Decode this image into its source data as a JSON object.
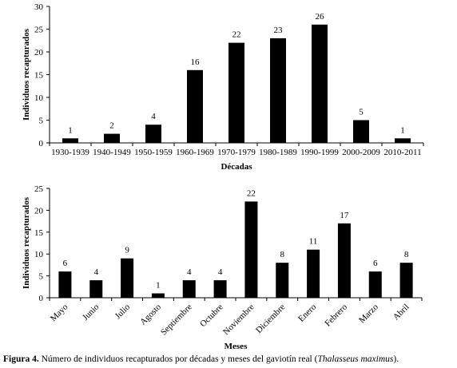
{
  "chart_data": [
    {
      "type": "bar",
      "title": "",
      "xlabel": "Décadas",
      "ylabel": "Individuos recapturados",
      "categories": [
        "1930-1939",
        "1940-1949",
        "1950-1959",
        "1960-1969",
        "1970-1979",
        "1980-1989",
        "1990-1999",
        "2000-2009",
        "2010-2011"
      ],
      "values": [
        1,
        2,
        4,
        16,
        22,
        23,
        26,
        5,
        1
      ],
      "ylim": [
        0,
        30
      ],
      "yticks": [
        0,
        5,
        10,
        15,
        20,
        25,
        30
      ],
      "data_labels": true,
      "grid": false,
      "bar_color": "#000000"
    },
    {
      "type": "bar",
      "title": "",
      "xlabel": "Meses",
      "ylabel": "Individuos recapturados",
      "categories": [
        "Mayo",
        "Junio",
        "Julio",
        "Agosto",
        "Septiembre",
        "Octubre",
        "Noviembre",
        "Diciembre",
        "Enero",
        "Febrero",
        "Marzo",
        "Abril"
      ],
      "values": [
        6,
        4,
        9,
        1,
        4,
        4,
        22,
        8,
        11,
        17,
        6,
        8
      ],
      "ylim": [
        0,
        25
      ],
      "yticks": [
        0,
        5,
        10,
        15,
        20,
        25
      ],
      "data_labels": true,
      "grid": false,
      "bar_color": "#000000"
    }
  ],
  "caption": {
    "label": "Figura 4.",
    "text": " Número de individuos recapturados por décadas y meses del gaviotín real (",
    "species": "Thalasseus maximus",
    "end": ")."
  }
}
